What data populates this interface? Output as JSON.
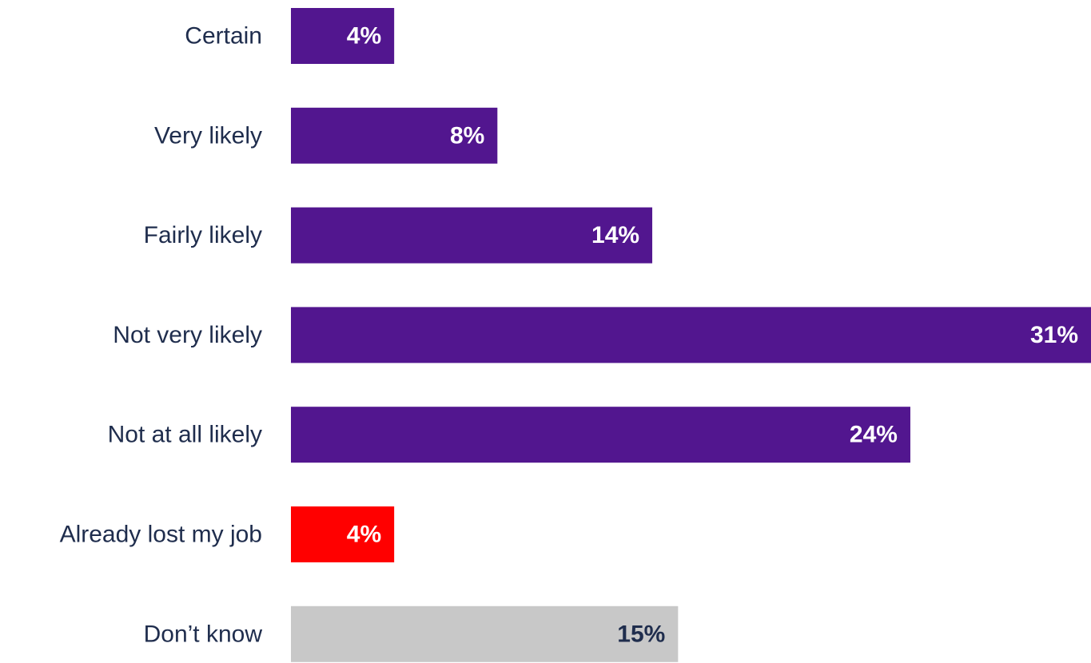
{
  "chart_data": {
    "type": "bar",
    "orientation": "horizontal",
    "title": "",
    "xlabel": "",
    "ylabel": "",
    "categories": [
      "Certain",
      "Very likely",
      "Fairly likely",
      "Not very likely",
      "Not at all likely",
      "Already lost my job",
      "Don’t know"
    ],
    "values": [
      4,
      8,
      14,
      31,
      24,
      4,
      15
    ],
    "value_labels": [
      "4%",
      "8%",
      "14%",
      "31%",
      "24%",
      "4%",
      "15%"
    ],
    "unit": "%",
    "xlim": [
      0,
      31
    ],
    "grid": false,
    "legend": "none",
    "colors": [
      "#52168f",
      "#52168f",
      "#52168f",
      "#52168f",
      "#52168f",
      "#ff0000",
      "#c8c8c8"
    ],
    "value_label_colors": [
      "#ffffff",
      "#ffffff",
      "#ffffff",
      "#ffffff",
      "#ffffff",
      "#ffffff",
      "#1f2d4d"
    ]
  }
}
